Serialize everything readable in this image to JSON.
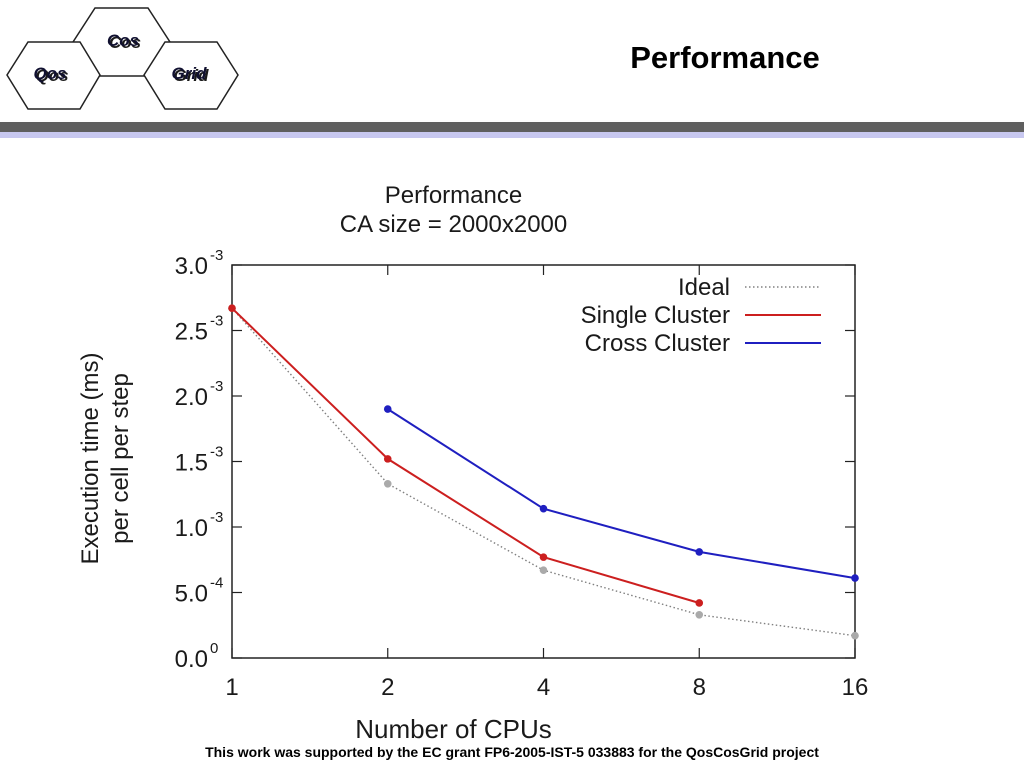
{
  "header": {
    "title": "Performance"
  },
  "logo": {
    "words": [
      "Cos",
      "Qos",
      "Grid"
    ]
  },
  "footer": {
    "text": "This work was supported by the EC grant FP6-2005-IST-5 033883 for the QosCosGrid project"
  },
  "colors": {
    "ideal": "#808080",
    "single": "#cc1f1f",
    "cross": "#1f1fc0",
    "rule_dark": "#5f5f5f",
    "rule_light": "#c8c8f0"
  },
  "chart_data": {
    "type": "line",
    "title": "Performance",
    "subtitle": "CA size = 2000x2000",
    "xlabel": "Number of CPUs",
    "ylabel": [
      "Execution time (ms)",
      "per cell per step"
    ],
    "x_scale": "log2",
    "x_ticks": [
      1,
      2,
      4,
      8,
      16
    ],
    "y_ticks": [
      {
        "value": 0.0,
        "mantissa": "0.0",
        "exp": "0"
      },
      {
        "value": 0.0005,
        "mantissa": "5.0",
        "exp": "-4"
      },
      {
        "value": 0.001,
        "mantissa": "1.0",
        "exp": "-3"
      },
      {
        "value": 0.0015,
        "mantissa": "1.5",
        "exp": "-3"
      },
      {
        "value": 0.002,
        "mantissa": "2.0",
        "exp": "-3"
      },
      {
        "value": 0.0025,
        "mantissa": "2.5",
        "exp": "-3"
      },
      {
        "value": 0.003,
        "mantissa": "3.0",
        "exp": "-3"
      }
    ],
    "xlim": [
      1,
      16
    ],
    "ylim": [
      0,
      0.003
    ],
    "legend_position": "top-right",
    "grid": false,
    "series": [
      {
        "name": "Ideal",
        "style": "dotted",
        "color": "#808080",
        "x": [
          1,
          2,
          4,
          8,
          16
        ],
        "y": [
          0.00267,
          0.00133,
          0.00067,
          0.00033,
          0.00017
        ]
      },
      {
        "name": "Single Cluster",
        "style": "solid",
        "color": "#cc1f1f",
        "x": [
          1,
          2,
          4,
          8
        ],
        "y": [
          0.00267,
          0.00152,
          0.00077,
          0.00042
        ]
      },
      {
        "name": "Cross Cluster",
        "style": "solid",
        "color": "#1f1fc0",
        "x": [
          2,
          4,
          8,
          16
        ],
        "y": [
          0.0019,
          0.00114,
          0.00081,
          0.00061
        ]
      }
    ]
  }
}
